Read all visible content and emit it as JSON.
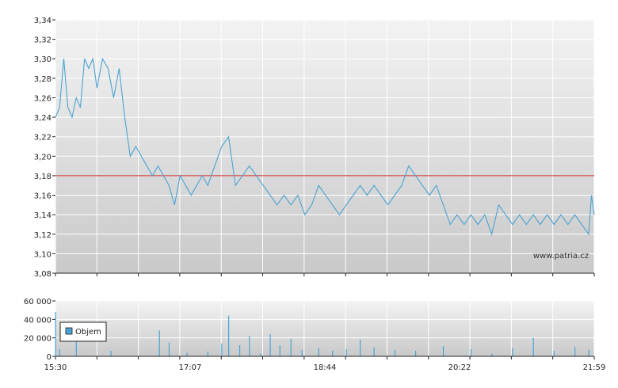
{
  "watermark": "www.patria.cz",
  "colors": {
    "price_line": "#4aa3d4",
    "reference_line": "#cc2a2a",
    "volume_bar": "#4aa3d4",
    "grid": "#ffffff",
    "plot_bg_top": "#f3f3f3",
    "plot_bg_bottom": "#c9c9c9",
    "axis": "#222222"
  },
  "x_tick_labels": [
    "15:30",
    "17:07",
    "18:44",
    "20:22",
    "21:59"
  ],
  "chart_data": [
    {
      "type": "line",
      "name": "price",
      "xlim": [
        "15:30",
        "21:59"
      ],
      "ylim": [
        3.08,
        3.34
      ],
      "y_ticks": [
        "3,08",
        "3,10",
        "3,12",
        "3,14",
        "3,16",
        "3,18",
        "3,20",
        "3,22",
        "3,24",
        "3,26",
        "3,28",
        "3,30",
        "3,32",
        "3,34"
      ],
      "reference_line": 3.18,
      "grid": true,
      "x": [
        "15:30",
        "15:33",
        "15:36",
        "15:39",
        "15:42",
        "15:45",
        "15:48",
        "15:51",
        "15:54",
        "15:57",
        "16:00",
        "16:04",
        "16:08",
        "16:12",
        "16:16",
        "16:20",
        "16:24",
        "16:28",
        "16:32",
        "16:36",
        "16:40",
        "16:44",
        "16:48",
        "16:52",
        "16:56",
        "17:00",
        "17:04",
        "17:08",
        "17:12",
        "17:16",
        "17:20",
        "17:25",
        "17:30",
        "17:35",
        "17:40",
        "17:45",
        "17:50",
        "17:55",
        "18:00",
        "18:05",
        "18:10",
        "18:15",
        "18:20",
        "18:25",
        "18:30",
        "18:35",
        "18:40",
        "18:45",
        "18:50",
        "18:55",
        "19:00",
        "19:05",
        "19:10",
        "19:15",
        "19:20",
        "19:25",
        "19:30",
        "19:35",
        "19:40",
        "19:45",
        "19:50",
        "19:55",
        "20:00",
        "20:05",
        "20:10",
        "20:15",
        "20:20",
        "20:25",
        "20:30",
        "20:35",
        "20:40",
        "20:45",
        "20:50",
        "20:55",
        "21:00",
        "21:05",
        "21:10",
        "21:15",
        "21:20",
        "21:25",
        "21:30",
        "21:35",
        "21:40",
        "21:45",
        "21:50",
        "21:55",
        "21:57",
        "21:59"
      ],
      "y": [
        3.24,
        3.25,
        3.3,
        3.25,
        3.24,
        3.26,
        3.25,
        3.3,
        3.29,
        3.3,
        3.27,
        3.3,
        3.29,
        3.26,
        3.29,
        3.24,
        3.2,
        3.21,
        3.2,
        3.19,
        3.18,
        3.19,
        3.18,
        3.17,
        3.15,
        3.18,
        3.17,
        3.16,
        3.17,
        3.18,
        3.17,
        3.19,
        3.21,
        3.22,
        3.17,
        3.18,
        3.19,
        3.18,
        3.17,
        3.16,
        3.15,
        3.16,
        3.15,
        3.16,
        3.14,
        3.15,
        3.17,
        3.16,
        3.15,
        3.14,
        3.15,
        3.16,
        3.17,
        3.16,
        3.17,
        3.16,
        3.15,
        3.16,
        3.17,
        3.19,
        3.18,
        3.17,
        3.16,
        3.17,
        3.15,
        3.13,
        3.14,
        3.13,
        3.14,
        3.13,
        3.14,
        3.12,
        3.15,
        3.14,
        3.13,
        3.14,
        3.13,
        3.14,
        3.13,
        3.14,
        3.13,
        3.14,
        3.13,
        3.14,
        3.13,
        3.12,
        3.16,
        3.14
      ]
    },
    {
      "type": "bar",
      "name": "volume",
      "legend": [
        "Objem"
      ],
      "ylim": [
        0,
        60000
      ],
      "y_ticks": [
        "0",
        "20 000",
        "40 000",
        "60 000"
      ],
      "grid": true,
      "x": [
        "15:30",
        "15:33",
        "15:45",
        "16:10",
        "16:45",
        "16:52",
        "17:05",
        "17:20",
        "17:30",
        "17:35",
        "17:43",
        "17:50",
        "17:58",
        "18:05",
        "18:12",
        "18:20",
        "18:28",
        "18:40",
        "18:50",
        "19:00",
        "19:10",
        "19:20",
        "19:35",
        "19:50",
        "20:10",
        "20:30",
        "20:45",
        "21:00",
        "21:15",
        "21:30",
        "21:45",
        "21:55"
      ],
      "values": [
        48000,
        8000,
        16000,
        6000,
        28000,
        15000,
        4000,
        5000,
        14000,
        44000,
        12000,
        22000,
        3000,
        24000,
        12000,
        19000,
        7000,
        9000,
        6000,
        8000,
        18000,
        10000,
        7000,
        6000,
        11000,
        8000,
        3000,
        9000,
        20000,
        6000,
        10000,
        7000
      ]
    }
  ]
}
